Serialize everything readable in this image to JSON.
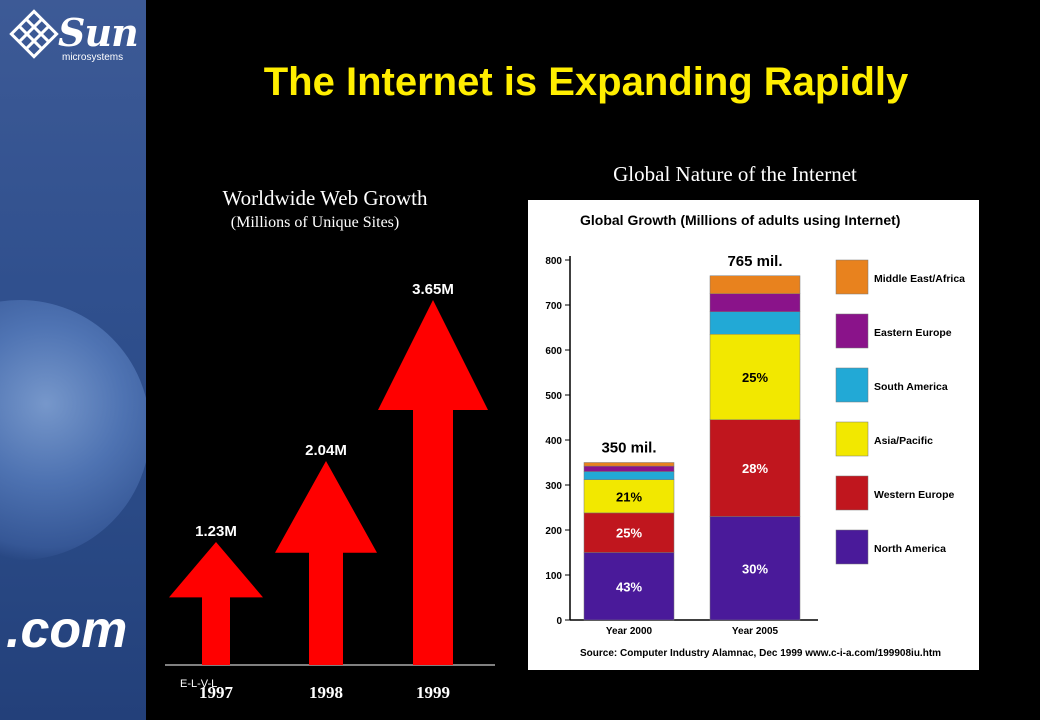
{
  "logo": {
    "word": "Sun",
    "sub": "microsystems"
  },
  "sidebar": {
    "dotcom": ".com"
  },
  "slide_title": "The Internet is Expanding Rapidly",
  "left_chart": {
    "title": "Worldwide Web Growth",
    "subtitle": "(Millions of Unique Sites)",
    "small_mark": "E-L-V-L"
  },
  "right_heading": "Global Nature of the Internet",
  "right_panel": {
    "title": "Global Growth (Millions of adults using Internet)",
    "source": "Source: Computer Industry Alamnac, Dec 1999 www.c-i-a.com/199908iu.htm"
  },
  "colors": {
    "background": "#000000",
    "title": "#ffee00",
    "arrow": "#ff0000",
    "north_america": "#4a1a9a",
    "western_europe": "#c0161e",
    "asia_pacific": "#f2e800",
    "south_america": "#22a9d6",
    "eastern_europe": "#8a138a",
    "middle_east_africa": "#e8821e"
  },
  "chart_data": [
    {
      "type": "bar",
      "title": "Worldwide Web Growth",
      "subtitle": "(Millions of Unique Sites)",
      "categories": [
        "1997",
        "1998",
        "1999"
      ],
      "values": [
        1.23,
        2.04,
        3.65
      ],
      "value_labels": [
        "1.23M",
        "2.04M",
        "3.65M"
      ],
      "ylim": [
        0,
        3.65
      ]
    },
    {
      "type": "bar",
      "title": "Global Growth (Millions of adults using Internet)",
      "categories": [
        "Year 2000",
        "Year 2005"
      ],
      "totals": [
        350,
        765
      ],
      "total_labels": [
        "350 mil.",
        "765 mil."
      ],
      "ylim": [
        0,
        800
      ],
      "yticks": [
        0,
        100,
        200,
        300,
        400,
        500,
        600,
        700,
        800
      ],
      "series": [
        {
          "name": "North America",
          "values": [
            150,
            230
          ],
          "label": [
            "43%",
            "30%"
          ]
        },
        {
          "name": "Western Europe",
          "values": [
            88,
            215
          ],
          "label": [
            "25%",
            "28%"
          ]
        },
        {
          "name": "Asia/Pacific",
          "values": [
            74,
            190
          ],
          "label": [
            "21%",
            "25%"
          ]
        },
        {
          "name": "South America",
          "values": [
            18,
            50
          ],
          "label": [
            "",
            ""
          ]
        },
        {
          "name": "Eastern Europe",
          "values": [
            12,
            40
          ],
          "label": [
            "",
            ""
          ]
        },
        {
          "name": "Middle East/Africa",
          "values": [
            8,
            40
          ],
          "label": [
            "",
            ""
          ]
        }
      ],
      "legend_order": [
        "Middle East/Africa",
        "Eastern Europe",
        "South America",
        "Asia/Pacific",
        "Western Europe",
        "North America"
      ],
      "legend": "right"
    }
  ]
}
